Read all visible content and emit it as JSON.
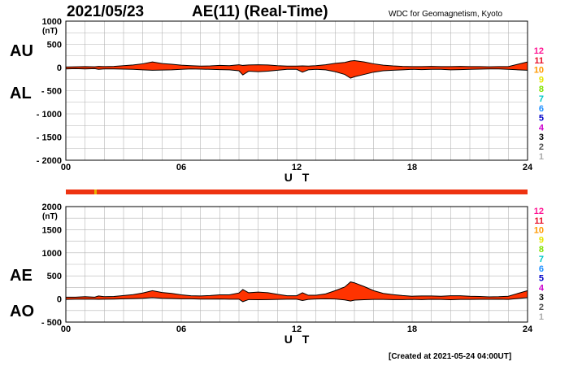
{
  "header": {
    "date": "2021/05/23",
    "title": "AE(11) (Real-Time)",
    "credit": "WDC for Geomagnetism, Kyoto"
  },
  "footer": {
    "created": "[Created at 2021-05-24 04:00UT]"
  },
  "legend_numbers": [
    "12",
    "11",
    "10",
    "9",
    "8",
    "7",
    "6",
    "5",
    "4",
    "3",
    "2",
    "1"
  ],
  "legend_colors": [
    "#ff1493",
    "#e8102a",
    "#ff9900",
    "#e6e600",
    "#80e000",
    "#00c8c8",
    "#1e90ff",
    "#0000c8",
    "#cc00cc",
    "#000000",
    "#505050",
    "#aaaaaa"
  ],
  "colors": {
    "fill": "#ff3300",
    "line": "#000000",
    "grid": "#b4b4b4",
    "station_bar": "#ee3311",
    "station_mark": "#e8b000"
  },
  "chart_data": [
    {
      "type": "area",
      "name": "AU/AL",
      "labels_left": [
        "AU",
        "AL"
      ],
      "unit": "(nT)",
      "xlabel": "U T",
      "x_ticks": [
        "00",
        "06",
        "12",
        "18",
        "24"
      ],
      "y_ticks": [
        "1000",
        "500",
        "0",
        "- 500",
        "- 1000",
        "- 1500",
        "- 2000"
      ],
      "xlim": [
        0,
        24
      ],
      "ylim": [
        -2000,
        1000
      ],
      "x_hours": [
        0,
        0.5,
        1,
        1.5,
        1.7,
        2,
        2.5,
        3,
        3.5,
        4,
        4.5,
        5,
        5.5,
        6,
        6.5,
        7,
        7.5,
        8,
        8.5,
        9,
        9.2,
        9.5,
        10,
        10.5,
        11,
        11.5,
        12,
        12.3,
        12.6,
        13,
        13.5,
        14,
        14.5,
        14.8,
        15,
        15.5,
        16,
        16.5,
        17,
        17.5,
        18,
        18.5,
        19,
        19.5,
        20,
        20.5,
        21,
        21.5,
        22,
        22.5,
        23,
        23.5,
        24
      ],
      "AU": [
        10,
        15,
        20,
        15,
        25,
        20,
        25,
        40,
        55,
        80,
        120,
        85,
        70,
        50,
        40,
        30,
        35,
        45,
        40,
        60,
        45,
        55,
        60,
        55,
        40,
        30,
        30,
        35,
        30,
        40,
        60,
        90,
        110,
        140,
        150,
        120,
        80,
        50,
        35,
        25,
        20,
        20,
        25,
        20,
        20,
        25,
        20,
        20,
        15,
        20,
        20,
        70,
        120
      ],
      "AL": [
        -30,
        -25,
        -30,
        -25,
        -40,
        -30,
        -30,
        -35,
        -40,
        -50,
        -60,
        -55,
        -50,
        -40,
        -30,
        -35,
        -40,
        -45,
        -50,
        -70,
        -160,
        -80,
        -90,
        -80,
        -60,
        -40,
        -40,
        -100,
        -50,
        -40,
        -50,
        -90,
        -150,
        -230,
        -200,
        -150,
        -100,
        -70,
        -60,
        -50,
        -40,
        -45,
        -40,
        -40,
        -50,
        -45,
        -40,
        -35,
        -30,
        -30,
        -40,
        -50,
        -60
      ]
    },
    {
      "type": "area",
      "name": "AE/AO",
      "labels_left": [
        "AE",
        "AO"
      ],
      "unit": "(nT)",
      "xlabel": "U T",
      "x_ticks": [
        "00",
        "06",
        "12",
        "18",
        "24"
      ],
      "y_ticks": [
        "2000",
        "1500",
        "1000",
        "500",
        "0",
        "- 500"
      ],
      "xlim": [
        0,
        24
      ],
      "ylim": [
        -500,
        2000
      ],
      "x_hours": [
        0,
        0.5,
        1,
        1.5,
        1.7,
        2,
        2.5,
        3,
        3.5,
        4,
        4.5,
        5,
        5.5,
        6,
        6.5,
        7,
        7.5,
        8,
        8.5,
        9,
        9.2,
        9.5,
        10,
        10.5,
        11,
        11.5,
        12,
        12.3,
        12.6,
        13,
        13.5,
        14,
        14.5,
        14.8,
        15,
        15.5,
        16,
        16.5,
        17,
        17.5,
        18,
        18.5,
        19,
        19.5,
        20,
        20.5,
        21,
        21.5,
        22,
        22.5,
        23,
        23.5,
        24
      ],
      "AE": [
        40,
        40,
        50,
        40,
        65,
        50,
        55,
        75,
        95,
        130,
        180,
        140,
        120,
        90,
        70,
        65,
        75,
        90,
        90,
        130,
        205,
        135,
        150,
        135,
        100,
        70,
        70,
        135,
        80,
        80,
        110,
        180,
        260,
        370,
        350,
        270,
        180,
        120,
        95,
        75,
        60,
        65,
        65,
        60,
        70,
        70,
        60,
        55,
        45,
        50,
        60,
        120,
        180
      ],
      "AO": [
        -10,
        -5,
        -5,
        -5,
        -8,
        -5,
        -3,
        3,
        8,
        15,
        30,
        15,
        10,
        5,
        5,
        -3,
        -3,
        0,
        -5,
        -5,
        -58,
        -13,
        -15,
        -13,
        -10,
        -5,
        -5,
        -33,
        -10,
        0,
        5,
        0,
        -20,
        -45,
        -25,
        -15,
        -10,
        -10,
        -13,
        -13,
        -10,
        -13,
        -8,
        -10,
        -15,
        -10,
        -10,
        -8,
        -8,
        -5,
        -10,
        10,
        30
      ]
    }
  ]
}
